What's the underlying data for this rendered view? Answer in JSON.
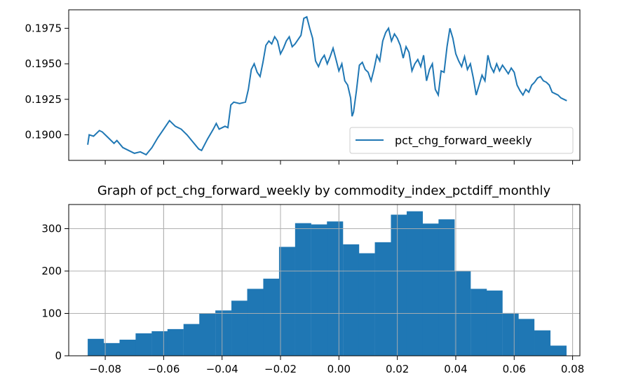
{
  "colors": {
    "series": "#1f77b4",
    "axis": "#000000",
    "grid": "#b0b0b0",
    "legend_frame": "#cccccc"
  },
  "chart_data": [
    {
      "type": "line",
      "title": "",
      "xlabel": "",
      "ylabel": "",
      "ylim": [
        0.1882,
        0.1988
      ],
      "yticks": [
        "0.1900",
        "0.1925",
        "0.1950",
        "0.1975"
      ],
      "xticks_labeled": false,
      "grid": false,
      "legend": {
        "position": "lower-right",
        "entries": [
          "pct_chg_forward_weekly"
        ]
      },
      "series": [
        {
          "name": "pct_chg_forward_weekly",
          "points": [
            [
              -0.086,
              0.1893
            ],
            [
              -0.0855,
              0.19
            ],
            [
              -0.084,
              0.1899
            ],
            [
              -0.082,
              0.1903
            ],
            [
              -0.081,
              0.1902
            ],
            [
              -0.079,
              0.1898
            ],
            [
              -0.077,
              0.1894
            ],
            [
              -0.076,
              0.1896
            ],
            [
              -0.074,
              0.1891
            ],
            [
              -0.072,
              0.1889
            ],
            [
              -0.07,
              0.1887
            ],
            [
              -0.068,
              0.1888
            ],
            [
              -0.066,
              0.1886
            ],
            [
              -0.064,
              0.1891
            ],
            [
              -0.062,
              0.1898
            ],
            [
              -0.06,
              0.1904
            ],
            [
              -0.058,
              0.191
            ],
            [
              -0.056,
              0.1906
            ],
            [
              -0.054,
              0.1904
            ],
            [
              -0.052,
              0.19
            ],
            [
              -0.05,
              0.1895
            ],
            [
              -0.048,
              0.189
            ],
            [
              -0.047,
              0.1889
            ],
            [
              -0.045,
              0.1897
            ],
            [
              -0.043,
              0.1904
            ],
            [
              -0.042,
              0.1908
            ],
            [
              -0.041,
              0.1904
            ],
            [
              -0.039,
              0.1906
            ],
            [
              -0.038,
              0.1905
            ],
            [
              -0.037,
              0.1921
            ],
            [
              -0.036,
              0.1923
            ],
            [
              -0.034,
              0.1922
            ],
            [
              -0.032,
              0.1923
            ],
            [
              -0.031,
              0.1932
            ],
            [
              -0.03,
              0.1946
            ],
            [
              -0.029,
              0.195
            ],
            [
              -0.028,
              0.1944
            ],
            [
              -0.027,
              0.1941
            ],
            [
              -0.026,
              0.1951
            ],
            [
              -0.025,
              0.1963
            ],
            [
              -0.024,
              0.1966
            ],
            [
              -0.023,
              0.1964
            ],
            [
              -0.022,
              0.1969
            ],
            [
              -0.021,
              0.1966
            ],
            [
              -0.02,
              0.1957
            ],
            [
              -0.019,
              0.1961
            ],
            [
              -0.018,
              0.1966
            ],
            [
              -0.017,
              0.1969
            ],
            [
              -0.016,
              0.1962
            ],
            [
              -0.015,
              0.1964
            ],
            [
              -0.014,
              0.1967
            ],
            [
              -0.013,
              0.197
            ],
            [
              -0.012,
              0.1982
            ],
            [
              -0.011,
              0.1983
            ],
            [
              -0.01,
              0.1975
            ],
            [
              -0.009,
              0.1968
            ],
            [
              -0.008,
              0.1952
            ],
            [
              -0.007,
              0.1948
            ],
            [
              -0.006,
              0.1953
            ],
            [
              -0.005,
              0.1956
            ],
            [
              -0.004,
              0.195
            ],
            [
              -0.003,
              0.1955
            ],
            [
              -0.002,
              0.1961
            ],
            [
              -0.001,
              0.1953
            ],
            [
              0.0,
              0.1945
            ],
            [
              0.001,
              0.195
            ],
            [
              0.002,
              0.1938
            ],
            [
              0.003,
              0.1935
            ],
            [
              0.004,
              0.1926
            ],
            [
              0.0045,
              0.1913
            ],
            [
              0.005,
              0.1916
            ],
            [
              0.006,
              0.1931
            ],
            [
              0.007,
              0.1949
            ],
            [
              0.008,
              0.1951
            ],
            [
              0.009,
              0.1946
            ],
            [
              0.01,
              0.1944
            ],
            [
              0.011,
              0.1938
            ],
            [
              0.012,
              0.1946
            ],
            [
              0.013,
              0.1956
            ],
            [
              0.014,
              0.1952
            ],
            [
              0.015,
              0.1966
            ],
            [
              0.016,
              0.1972
            ],
            [
              0.017,
              0.1975
            ],
            [
              0.018,
              0.1966
            ],
            [
              0.019,
              0.1971
            ],
            [
              0.02,
              0.1968
            ],
            [
              0.021,
              0.1963
            ],
            [
              0.022,
              0.1954
            ],
            [
              0.023,
              0.1962
            ],
            [
              0.024,
              0.1958
            ],
            [
              0.025,
              0.1945
            ],
            [
              0.026,
              0.195
            ],
            [
              0.027,
              0.1953
            ],
            [
              0.028,
              0.1948
            ],
            [
              0.029,
              0.1956
            ],
            [
              0.03,
              0.1938
            ],
            [
              0.031,
              0.1946
            ],
            [
              0.032,
              0.195
            ],
            [
              0.033,
              0.1932
            ],
            [
              0.034,
              0.1928
            ],
            [
              0.035,
              0.1945
            ],
            [
              0.036,
              0.1944
            ],
            [
              0.037,
              0.1962
            ],
            [
              0.038,
              0.1975
            ],
            [
              0.039,
              0.1968
            ],
            [
              0.04,
              0.1957
            ],
            [
              0.041,
              0.1952
            ],
            [
              0.042,
              0.1948
            ],
            [
              0.043,
              0.1955
            ],
            [
              0.044,
              0.1946
            ],
            [
              0.045,
              0.195
            ],
            [
              0.046,
              0.194
            ],
            [
              0.047,
              0.1928
            ],
            [
              0.048,
              0.1935
            ],
            [
              0.049,
              0.1942
            ],
            [
              0.05,
              0.1938
            ],
            [
              0.051,
              0.1956
            ],
            [
              0.052,
              0.1948
            ],
            [
              0.053,
              0.1944
            ],
            [
              0.054,
              0.195
            ],
            [
              0.055,
              0.1945
            ],
            [
              0.056,
              0.1949
            ],
            [
              0.057,
              0.1946
            ],
            [
              0.058,
              0.1943
            ],
            [
              0.059,
              0.1947
            ],
            [
              0.06,
              0.1944
            ],
            [
              0.061,
              0.1935
            ],
            [
              0.062,
              0.1931
            ],
            [
              0.063,
              0.1928
            ],
            [
              0.064,
              0.1932
            ],
            [
              0.065,
              0.193
            ],
            [
              0.066,
              0.1935
            ],
            [
              0.067,
              0.1937
            ],
            [
              0.068,
              0.194
            ],
            [
              0.069,
              0.1941
            ],
            [
              0.07,
              0.1938
            ],
            [
              0.071,
              0.1937
            ],
            [
              0.072,
              0.1935
            ],
            [
              0.073,
              0.193
            ],
            [
              0.074,
              0.1929
            ],
            [
              0.075,
              0.1928
            ],
            [
              0.076,
              0.1926
            ],
            [
              0.077,
              0.1925
            ],
            [
              0.078,
              0.1924
            ]
          ]
        }
      ]
    },
    {
      "type": "bar",
      "title": "Graph of pct_chg_forward_weekly by commodity_index_pctdiff_monthly",
      "xlabel": "",
      "ylabel": "",
      "xlim": [
        -0.0925,
        0.0825
      ],
      "ylim": [
        0,
        357
      ],
      "xticks": [
        "−0.08",
        "−0.06",
        "−0.04",
        "−0.02",
        "0.00",
        "0.02",
        "0.04",
        "0.06",
        "0.08"
      ],
      "yticks": [
        "0",
        "100",
        "200",
        "300"
      ],
      "grid": true,
      "bin_width": 0.00546,
      "bins": [
        [
          -0.086,
          40
        ],
        [
          -0.0805,
          30
        ],
        [
          -0.0751,
          38
        ],
        [
          -0.0696,
          53
        ],
        [
          -0.0641,
          58
        ],
        [
          -0.0587,
          63
        ],
        [
          -0.0532,
          75
        ],
        [
          -0.0478,
          100
        ],
        [
          -0.0423,
          107
        ],
        [
          -0.0368,
          130
        ],
        [
          -0.0314,
          158
        ],
        [
          -0.0259,
          182
        ],
        [
          -0.0205,
          257
        ],
        [
          -0.015,
          313
        ],
        [
          -0.0095,
          310
        ],
        [
          -0.0041,
          317
        ],
        [
          0.0014,
          263
        ],
        [
          0.0068,
          242
        ],
        [
          0.0123,
          268
        ],
        [
          0.0178,
          333
        ],
        [
          0.0232,
          341
        ],
        [
          0.0287,
          312
        ],
        [
          0.0341,
          322
        ],
        [
          0.0396,
          200
        ],
        [
          0.0451,
          158
        ],
        [
          0.0505,
          154
        ],
        [
          0.056,
          101
        ],
        [
          0.0614,
          87
        ],
        [
          0.0669,
          60
        ],
        [
          0.0724,
          24
        ]
      ]
    }
  ]
}
